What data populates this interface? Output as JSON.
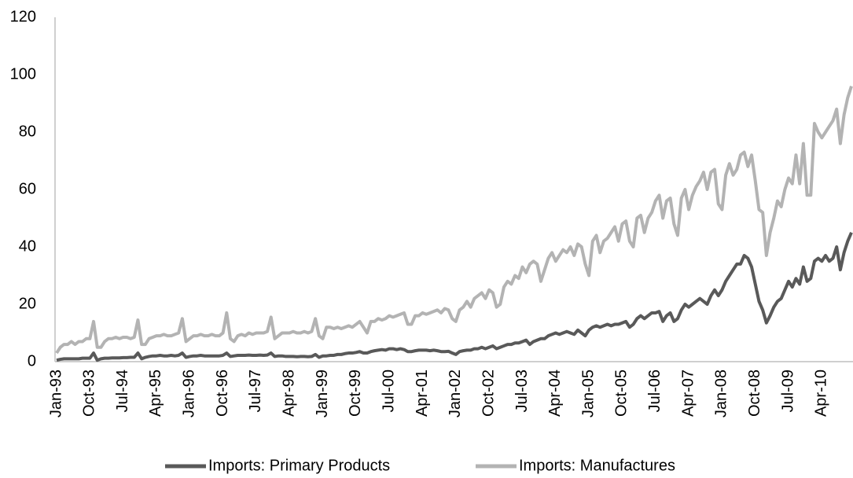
{
  "chart_data": {
    "type": "line",
    "categories": [
      "Jan-93",
      null,
      null,
      null,
      null,
      null,
      null,
      null,
      null,
      "Oct-93",
      null,
      null,
      null,
      null,
      null,
      null,
      null,
      null,
      "Jul-94",
      null,
      null,
      null,
      null,
      null,
      null,
      null,
      null,
      "Apr-95",
      null,
      null,
      null,
      null,
      null,
      null,
      null,
      null,
      "Jan-96",
      null,
      null,
      null,
      null,
      null,
      null,
      null,
      null,
      "Oct-96",
      null,
      null,
      null,
      null,
      null,
      null,
      null,
      null,
      "Jul-97",
      null,
      null,
      null,
      null,
      null,
      null,
      null,
      null,
      "Apr-98",
      null,
      null,
      null,
      null,
      null,
      null,
      null,
      null,
      "Jan-99",
      null,
      null,
      null,
      null,
      null,
      null,
      null,
      null,
      "Oct-99",
      null,
      null,
      null,
      null,
      null,
      null,
      null,
      null,
      "Jul-00",
      null,
      null,
      null,
      null,
      null,
      null,
      null,
      null,
      "Apr-01",
      null,
      null,
      null,
      null,
      null,
      null,
      null,
      null,
      "Jan-02",
      null,
      null,
      null,
      null,
      null,
      null,
      null,
      null,
      "Oct-02",
      null,
      null,
      null,
      null,
      null,
      null,
      null,
      null,
      "Jul-03",
      null,
      null,
      null,
      null,
      null,
      null,
      null,
      null,
      "Apr-04",
      null,
      null,
      null,
      null,
      null,
      null,
      null,
      null,
      "Jan-05",
      null,
      null,
      null,
      null,
      null,
      null,
      null,
      null,
      "Oct-05",
      null,
      null,
      null,
      null,
      null,
      null,
      null,
      null,
      "Jul-06",
      null,
      null,
      null,
      null,
      null,
      null,
      null,
      null,
      "Apr-07",
      null,
      null,
      null,
      null,
      null,
      null,
      null,
      null,
      "Jan-08",
      null,
      null,
      null,
      null,
      null,
      null,
      null,
      null,
      "Oct-08",
      null,
      null,
      null,
      null,
      null,
      null,
      null,
      null,
      "Jul-09",
      null,
      null,
      null,
      null,
      null,
      null,
      null,
      null,
      "Apr-10",
      null,
      null,
      null,
      null,
      null,
      null,
      null,
      null
    ],
    "series": [
      {
        "name": "Imports: Primary Products",
        "color": "#595959",
        "values": [
          0.5,
          0.8,
          1,
          1,
          1,
          1,
          1,
          1.2,
          1.2,
          1.2,
          3,
          0.5,
          1,
          1.2,
          1.2,
          1.3,
          1.3,
          1.3,
          1.4,
          1.4,
          1.5,
          1.5,
          3,
          1,
          1.5,
          1.8,
          2,
          2,
          2.2,
          2,
          2,
          2.2,
          2,
          2.2,
          3,
          1.5,
          1.8,
          2,
          2,
          2.2,
          2,
          2,
          2,
          2,
          2,
          2.2,
          3,
          1.8,
          2,
          2.2,
          2.2,
          2.2,
          2.3,
          2.2,
          2.2,
          2.3,
          2.2,
          2.3,
          3,
          1.8,
          2,
          2,
          1.8,
          1.8,
          1.8,
          1.7,
          1.8,
          1.8,
          1.7,
          1.8,
          2.5,
          1.5,
          2,
          2,
          2.2,
          2.2,
          2.5,
          2.5,
          2.8,
          3,
          3,
          3.2,
          3.5,
          3,
          3,
          3.5,
          3.8,
          4,
          4.2,
          4,
          4.5,
          4.5,
          4.2,
          4.5,
          4.2,
          3.5,
          3.5,
          3.8,
          4,
          4,
          4,
          3.8,
          4,
          3.8,
          3.5,
          3.5,
          3.6,
          3,
          2.5,
          3.5,
          3.8,
          4,
          4,
          4.5,
          4.5,
          5,
          4.5,
          5,
          5.5,
          4.5,
          5,
          5.5,
          6,
          6,
          6.5,
          6.5,
          7,
          7.5,
          6,
          7,
          7.5,
          8,
          8,
          9,
          9.5,
          10,
          9.5,
          10,
          10.5,
          10,
          9.5,
          11,
          10,
          9,
          11,
          12,
          12.5,
          12,
          12.5,
          13,
          12.5,
          13,
          13,
          13.5,
          14,
          12,
          13,
          15,
          16,
          15,
          16,
          17,
          17,
          17.5,
          14,
          16,
          17,
          14,
          15,
          18,
          20,
          19,
          20,
          21,
          22,
          21,
          20,
          23,
          25,
          23,
          25,
          28,
          30,
          32,
          34,
          34,
          37,
          36,
          33,
          27,
          21,
          18,
          13.5,
          16,
          19,
          21,
          22,
          25,
          28,
          26,
          29,
          27,
          33,
          28,
          29,
          35,
          36,
          35,
          37,
          35,
          36,
          40,
          32,
          38,
          42,
          45
        ]
      },
      {
        "name": "Imports: Manufactures",
        "color": "#b3b3b3",
        "values": [
          3,
          5,
          6,
          6,
          7,
          6,
          7,
          7,
          8,
          8,
          14,
          5,
          5,
          7,
          8,
          8,
          8.5,
          8,
          8.5,
          8.5,
          8,
          8.5,
          14.5,
          6,
          6,
          8,
          8.5,
          9,
          9,
          9.5,
          9,
          9,
          9.5,
          10,
          15,
          7,
          8,
          9,
          9,
          9.5,
          9,
          9,
          9.5,
          9,
          9,
          10,
          17,
          8,
          7,
          9,
          9.5,
          9,
          10,
          9.5,
          10,
          10,
          10,
          10.5,
          15.5,
          8,
          9,
          10,
          10,
          10,
          10.5,
          10,
          10,
          10.5,
          10,
          10.5,
          15,
          9,
          8,
          12,
          12,
          11.5,
          12,
          11.5,
          12,
          12.5,
          12,
          13,
          14,
          12,
          10,
          14,
          14,
          15,
          14.5,
          15,
          16,
          15.5,
          16,
          16.5,
          17,
          13,
          13,
          16,
          16,
          17,
          16.5,
          17,
          17.5,
          18,
          17,
          18.5,
          18,
          15,
          14,
          18,
          19,
          21,
          19,
          22,
          23,
          24,
          22,
          25,
          24,
          19,
          20,
          26,
          28,
          27,
          30,
          29,
          33,
          31,
          34,
          35,
          34,
          28,
          32,
          36,
          38,
          35,
          37,
          39,
          38,
          40,
          37,
          41,
          40,
          34,
          30,
          42,
          44,
          38,
          42,
          43,
          45,
          47,
          42,
          48,
          49,
          42,
          40,
          50,
          51,
          45,
          50,
          52,
          56,
          58,
          50,
          56,
          57,
          48,
          44,
          57,
          60,
          53,
          58,
          61,
          63,
          66,
          60,
          66,
          67,
          55,
          53,
          65,
          69,
          65,
          67,
          72,
          73,
          68,
          72,
          63,
          53,
          52,
          37,
          45,
          50,
          56,
          54,
          60,
          64,
          62,
          72,
          62,
          76,
          58,
          58,
          83,
          80,
          78,
          80,
          82,
          84,
          88,
          76,
          86,
          92,
          96
        ]
      }
    ],
    "ylim": [
      0,
      120
    ],
    "yticks": [
      0,
      20,
      40,
      60,
      80,
      100,
      120
    ],
    "legend": "bottom"
  }
}
